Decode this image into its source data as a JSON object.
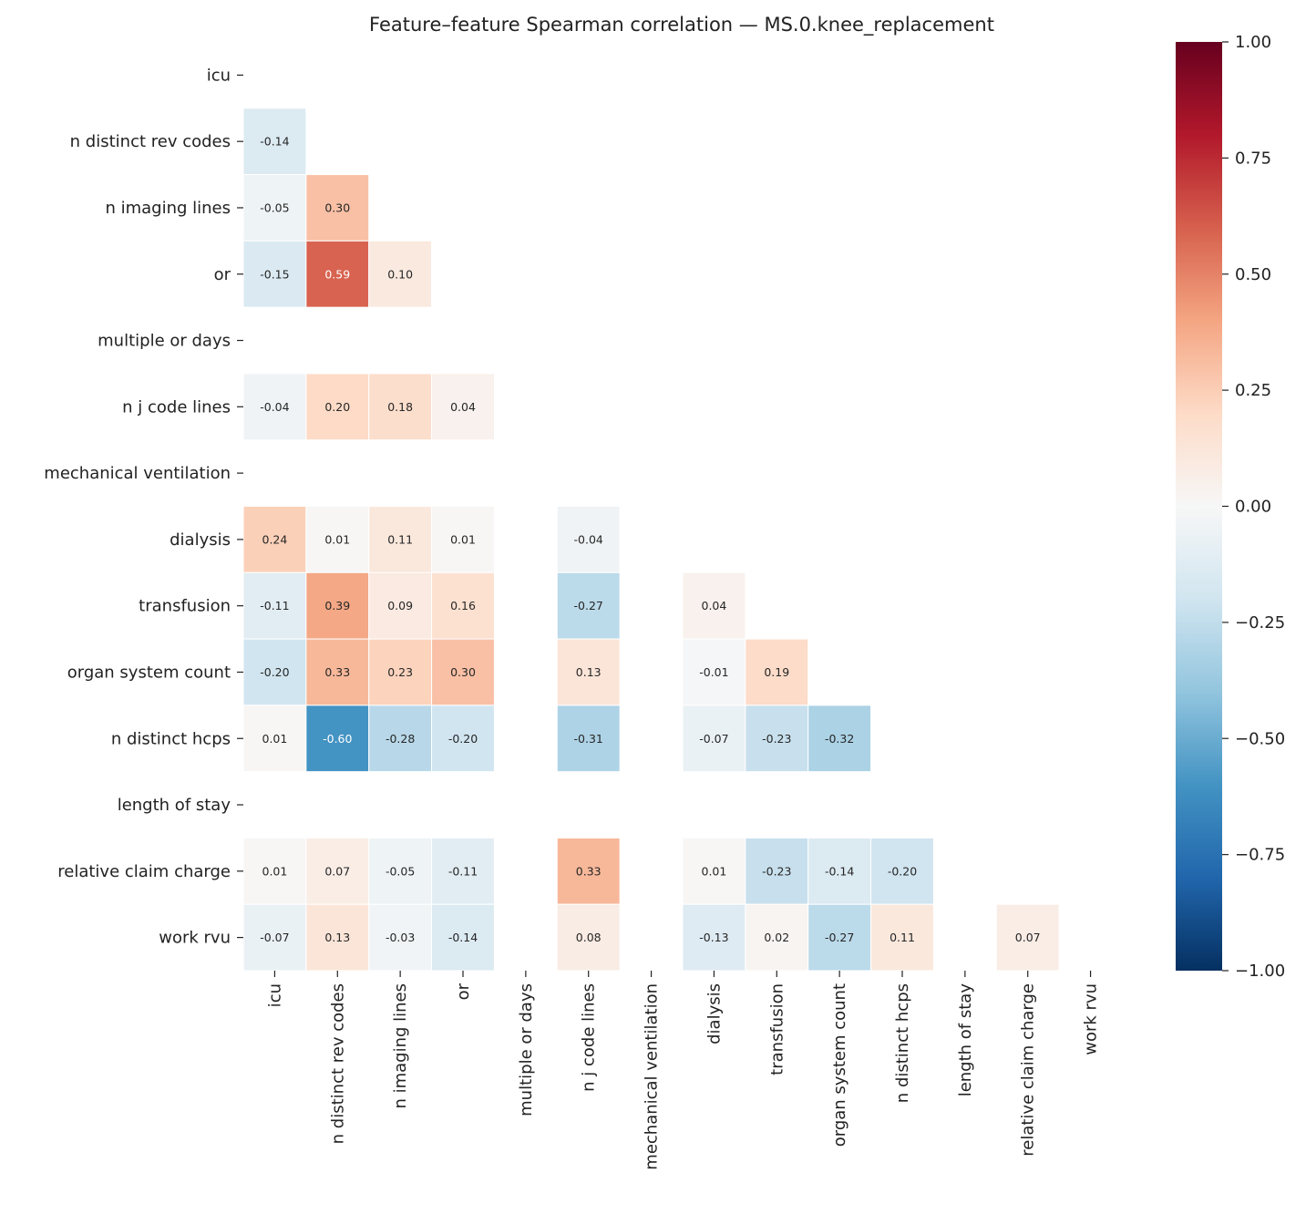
{
  "chart_data": {
    "type": "heatmap",
    "title": "Feature–feature Spearman correlation — MS.0.knee_replacement",
    "labels": [
      "icu",
      "n distinct rev codes",
      "n imaging lines",
      "or",
      "multiple or days",
      "n j code lines",
      "mechanical ventilation",
      "dialysis",
      "transfusion",
      "organ system count",
      "n distinct hcps",
      "length of stay",
      "relative claim charge",
      "work rvu"
    ],
    "matrix": [
      [
        null,
        null,
        null,
        null,
        null,
        null,
        null,
        null,
        null,
        null,
        null,
        null,
        null,
        null
      ],
      [
        -0.14,
        null,
        null,
        null,
        null,
        null,
        null,
        null,
        null,
        null,
        null,
        null,
        null,
        null
      ],
      [
        -0.05,
        0.3,
        null,
        null,
        null,
        null,
        null,
        null,
        null,
        null,
        null,
        null,
        null,
        null
      ],
      [
        -0.15,
        0.59,
        0.1,
        null,
        null,
        null,
        null,
        null,
        null,
        null,
        null,
        null,
        null,
        null
      ],
      [
        null,
        null,
        null,
        null,
        null,
        null,
        null,
        null,
        null,
        null,
        null,
        null,
        null,
        null
      ],
      [
        -0.04,
        0.2,
        0.18,
        0.04,
        null,
        null,
        null,
        null,
        null,
        null,
        null,
        null,
        null,
        null
      ],
      [
        null,
        null,
        null,
        null,
        null,
        null,
        null,
        null,
        null,
        null,
        null,
        null,
        null,
        null
      ],
      [
        0.24,
        0.01,
        0.11,
        0.01,
        null,
        -0.04,
        null,
        null,
        null,
        null,
        null,
        null,
        null,
        null
      ],
      [
        -0.11,
        0.39,
        0.09,
        0.16,
        null,
        -0.27,
        null,
        0.04,
        null,
        null,
        null,
        null,
        null,
        null
      ],
      [
        -0.2,
        0.33,
        0.23,
        0.3,
        null,
        0.13,
        null,
        -0.01,
        0.19,
        null,
        null,
        null,
        null,
        null
      ],
      [
        0.01,
        -0.6,
        -0.28,
        -0.2,
        null,
        -0.31,
        null,
        -0.07,
        -0.23,
        -0.32,
        null,
        null,
        null,
        null
      ],
      [
        null,
        null,
        null,
        null,
        null,
        null,
        null,
        null,
        null,
        null,
        null,
        null,
        null,
        null
      ],
      [
        0.01,
        0.07,
        -0.05,
        -0.11,
        null,
        0.33,
        null,
        0.01,
        -0.23,
        -0.14,
        -0.2,
        null,
        null,
        null
      ],
      [
        -0.07,
        0.13,
        -0.03,
        -0.14,
        null,
        0.08,
        null,
        -0.13,
        0.02,
        -0.27,
        0.11,
        null,
        0.07,
        null
      ]
    ],
    "colormap": "RdBu_r",
    "vmin": -1.0,
    "vmax": 1.0,
    "colorbar_ticks": [
      "1.00",
      "0.75",
      "0.50",
      "0.25",
      "0.00",
      "−0.25",
      "−0.50",
      "−0.75",
      "−1.00"
    ],
    "colorbar_tick_values": [
      1,
      0.75,
      0.5,
      0.25,
      0,
      -0.25,
      -0.5,
      -0.75,
      -1
    ],
    "annotation_format": "2 decimals",
    "mask": "upper triangle and diagonal"
  }
}
